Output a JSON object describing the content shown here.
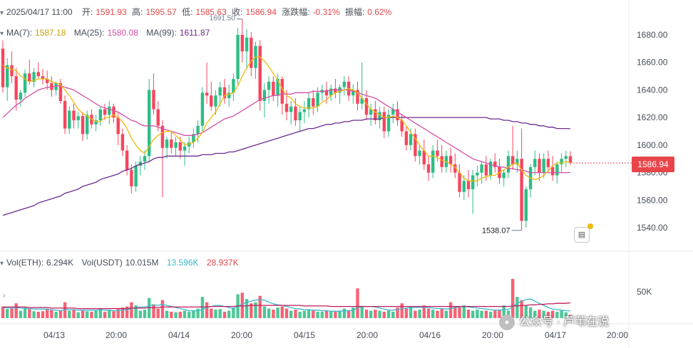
{
  "header": {
    "datetime": "2025/04/17 11:00",
    "open_label": "开:",
    "open": "1591.93",
    "high_label": "高:",
    "high": "1595.57",
    "low_label": "低:",
    "low": "1585.63",
    "close_label": "收:",
    "close": "1586.94",
    "change_label": "涨跌幅:",
    "change": "-0.31%",
    "amplitude_label": "振幅:",
    "amplitude": "0.62%"
  },
  "ma_legend": {
    "ma7_label": "MA(7):",
    "ma7": "1587.18",
    "ma25_label": "MA(25):",
    "ma25": "1580.08",
    "ma99_label": "MA(99):",
    "ma99": "1611.87"
  },
  "vol_legend": {
    "eth_label": "Vol(ETH):",
    "eth": "6.294K",
    "usdt_label": "Vol(USDT)",
    "usdt": "10.015M",
    "ma_a": "13.596K",
    "ma_b": "28.937K"
  },
  "current_price_badge": "1586.94",
  "watermark": "公众号 · 芦苇在说",
  "colors": {
    "up": "#2ebd85",
    "down": "#f6465d",
    "ma7": "#f0b90b",
    "ma25": "#d34fa6",
    "ma99": "#6c2b8c",
    "vol_ma_a": "#3bb7c9",
    "vol_ma_b": "#c2185b"
  },
  "chart_data": {
    "type": "candlestick",
    "price_axis": {
      "min": 1530,
      "max": 1700,
      "ticks": [
        "1540.00",
        "1560.00",
        "1580.00",
        "1600.00",
        "1620.00",
        "1640.00",
        "1660.00",
        "1680.00"
      ]
    },
    "volume_axis": {
      "max": 90,
      "unit": "K",
      "tick_labels": [
        "50K"
      ],
      "tick_values": [
        50
      ]
    },
    "x_tick_labels": [
      "04/13",
      "20:00",
      "04/14",
      "20:00",
      "04/15",
      "20:00",
      "04/16",
      "20:00",
      "04/17",
      "20:00"
    ],
    "annotations": [
      {
        "label": "1691.50",
        "value": 1691.5,
        "kind": "high"
      },
      {
        "label": "1538.07",
        "value": 1538.07,
        "kind": "low"
      }
    ],
    "last_price": 1586.94,
    "ohlc": [
      [
        1670,
        1676,
        1638,
        1642
      ],
      [
        1642,
        1663,
        1632,
        1658
      ],
      [
        1658,
        1668,
        1645,
        1650
      ],
      [
        1650,
        1656,
        1625,
        1633
      ],
      [
        1633,
        1640,
        1628,
        1638
      ],
      [
        1638,
        1655,
        1635,
        1652
      ],
      [
        1652,
        1662,
        1644,
        1646
      ],
      [
        1646,
        1656,
        1642,
        1653
      ],
      [
        1653,
        1660,
        1648,
        1650
      ],
      [
        1650,
        1655,
        1644,
        1648
      ],
      [
        1648,
        1654,
        1640,
        1645
      ],
      [
        1645,
        1650,
        1635,
        1640
      ],
      [
        1640,
        1646,
        1636,
        1645
      ],
      [
        1645,
        1648,
        1630,
        1632
      ],
      [
        1632,
        1636,
        1608,
        1612
      ],
      [
        1612,
        1628,
        1608,
        1625
      ],
      [
        1625,
        1630,
        1612,
        1618
      ],
      [
        1618,
        1624,
        1612,
        1621
      ],
      [
        1621,
        1624,
        1603,
        1608
      ],
      [
        1608,
        1625,
        1604,
        1622
      ],
      [
        1622,
        1626,
        1612,
        1615
      ],
      [
        1615,
        1622,
        1610,
        1618
      ],
      [
        1618,
        1628,
        1614,
        1626
      ],
      [
        1626,
        1630,
        1618,
        1622
      ],
      [
        1622,
        1632,
        1615,
        1628
      ],
      [
        1628,
        1630,
        1616,
        1620
      ],
      [
        1620,
        1624,
        1600,
        1608
      ],
      [
        1608,
        1612,
        1592,
        1596
      ],
      [
        1596,
        1600,
        1578,
        1582
      ],
      [
        1582,
        1586,
        1565,
        1570
      ],
      [
        1570,
        1588,
        1566,
        1585
      ],
      [
        1585,
        1592,
        1578,
        1588
      ],
      [
        1588,
        1596,
        1582,
        1592
      ],
      [
        1592,
        1648,
        1588,
        1640
      ],
      [
        1640,
        1652,
        1622,
        1626
      ],
      [
        1626,
        1632,
        1610,
        1614
      ],
      [
        1614,
        1618,
        1562,
        1598
      ],
      [
        1598,
        1606,
        1590,
        1604
      ],
      [
        1604,
        1610,
        1594,
        1598
      ],
      [
        1598,
        1606,
        1592,
        1602
      ],
      [
        1602,
        1606,
        1590,
        1596
      ],
      [
        1596,
        1602,
        1585,
        1599
      ],
      [
        1599,
        1606,
        1594,
        1602
      ],
      [
        1602,
        1612,
        1598,
        1608
      ],
      [
        1608,
        1618,
        1602,
        1614
      ],
      [
        1614,
        1642,
        1610,
        1638
      ],
      [
        1638,
        1660,
        1630,
        1636
      ],
      [
        1636,
        1646,
        1625,
        1628
      ],
      [
        1628,
        1640,
        1622,
        1636
      ],
      [
        1636,
        1646,
        1628,
        1642
      ],
      [
        1642,
        1648,
        1630,
        1634
      ],
      [
        1634,
        1644,
        1628,
        1638
      ],
      [
        1638,
        1652,
        1632,
        1648
      ],
      [
        1648,
        1685,
        1644,
        1680
      ],
      [
        1680,
        1691.5,
        1660,
        1668
      ],
      [
        1668,
        1684,
        1655,
        1678
      ],
      [
        1678,
        1682,
        1650,
        1656
      ],
      [
        1656,
        1675,
        1648,
        1672
      ],
      [
        1672,
        1676,
        1625,
        1632
      ],
      [
        1632,
        1645,
        1620,
        1640
      ],
      [
        1640,
        1650,
        1630,
        1646
      ],
      [
        1646,
        1650,
        1632,
        1636
      ],
      [
        1636,
        1652,
        1628,
        1648
      ],
      [
        1648,
        1650,
        1622,
        1630
      ],
      [
        1630,
        1640,
        1618,
        1624
      ],
      [
        1624,
        1632,
        1615,
        1628
      ],
      [
        1628,
        1634,
        1614,
        1618
      ],
      [
        1618,
        1628,
        1610,
        1624
      ],
      [
        1624,
        1632,
        1616,
        1626
      ],
      [
        1626,
        1638,
        1620,
        1634
      ],
      [
        1634,
        1640,
        1622,
        1628
      ],
      [
        1628,
        1642,
        1624,
        1638
      ],
      [
        1638,
        1644,
        1632,
        1640
      ],
      [
        1640,
        1646,
        1630,
        1636
      ],
      [
        1636,
        1644,
        1632,
        1641
      ],
      [
        1641,
        1648,
        1634,
        1638
      ],
      [
        1638,
        1644,
        1630,
        1642
      ],
      [
        1642,
        1650,
        1636,
        1646
      ],
      [
        1646,
        1650,
        1632,
        1636
      ],
      [
        1636,
        1644,
        1630,
        1640
      ],
      [
        1640,
        1646,
        1625,
        1630
      ],
      [
        1630,
        1660,
        1626,
        1634
      ],
      [
        1634,
        1640,
        1618,
        1622
      ],
      [
        1622,
        1630,
        1614,
        1626
      ],
      [
        1626,
        1632,
        1615,
        1618
      ],
      [
        1618,
        1628,
        1612,
        1624
      ],
      [
        1624,
        1628,
        1605,
        1610
      ],
      [
        1610,
        1626,
        1606,
        1622
      ],
      [
        1622,
        1630,
        1616,
        1626
      ],
      [
        1626,
        1632,
        1614,
        1618
      ],
      [
        1618,
        1622,
        1606,
        1610
      ],
      [
        1610,
        1614,
        1596,
        1600
      ],
      [
        1600,
        1612,
        1596,
        1608
      ],
      [
        1608,
        1612,
        1588,
        1592
      ],
      [
        1592,
        1600,
        1586,
        1596
      ],
      [
        1596,
        1604,
        1582,
        1586
      ],
      [
        1586,
        1592,
        1574,
        1580
      ],
      [
        1580,
        1600,
        1576,
        1596
      ],
      [
        1596,
        1604,
        1588,
        1592
      ],
      [
        1592,
        1600,
        1580,
        1584
      ],
      [
        1584,
        1596,
        1580,
        1592
      ],
      [
        1592,
        1598,
        1580,
        1586
      ],
      [
        1586,
        1594,
        1576,
        1580
      ],
      [
        1580,
        1586,
        1562,
        1566
      ],
      [
        1566,
        1578,
        1560,
        1574
      ],
      [
        1574,
        1582,
        1562,
        1568
      ],
      [
        1568,
        1582,
        1550,
        1578
      ],
      [
        1578,
        1585,
        1570,
        1580
      ],
      [
        1580,
        1588,
        1572,
        1586
      ],
      [
        1586,
        1592,
        1574,
        1578
      ],
      [
        1578,
        1590,
        1575,
        1588
      ],
      [
        1588,
        1594,
        1580,
        1584
      ],
      [
        1584,
        1590,
        1572,
        1576
      ],
      [
        1576,
        1582,
        1570,
        1580
      ],
      [
        1580,
        1596,
        1576,
        1592
      ],
      [
        1592,
        1614,
        1582,
        1586
      ],
      [
        1586,
        1596,
        1580,
        1590
      ],
      [
        1590,
        1612,
        1538.07,
        1545
      ],
      [
        1545,
        1570,
        1540,
        1568
      ],
      [
        1568,
        1586,
        1562,
        1584
      ],
      [
        1584,
        1596,
        1578,
        1590
      ],
      [
        1590,
        1594,
        1574,
        1580
      ],
      [
        1580,
        1594,
        1576,
        1590
      ],
      [
        1590,
        1596,
        1580,
        1584
      ],
      [
        1584,
        1592,
        1574,
        1578
      ],
      [
        1578,
        1588,
        1572,
        1586
      ],
      [
        1586,
        1594,
        1580,
        1590
      ],
      [
        1590,
        1596,
        1584,
        1592
      ],
      [
        1591.93,
        1595.57,
        1585.63,
        1586.94
      ]
    ],
    "ma7": [
      1658,
      1656,
      1655,
      1654,
      1650,
      1648,
      1646,
      1647,
      1648,
      1648,
      1648,
      1646,
      1645,
      1644,
      1640,
      1636,
      1631,
      1626,
      1623,
      1621,
      1619,
      1617,
      1617,
      1620,
      1620,
      1622,
      1620,
      1617,
      1612,
      1605,
      1600,
      1596,
      1594,
      1599,
      1604,
      1607,
      1609,
      1610,
      1610,
      1607,
      1604,
      1600,
      1601,
      1602,
      1605,
      1609,
      1616,
      1620,
      1624,
      1630,
      1636,
      1637,
      1638,
      1643,
      1650,
      1656,
      1661,
      1664,
      1664,
      1661,
      1657,
      1652,
      1647,
      1641,
      1636,
      1634,
      1630,
      1628,
      1627,
      1627,
      1627,
      1628,
      1631,
      1633,
      1636,
      1638,
      1639,
      1640,
      1641,
      1640,
      1638,
      1634,
      1630,
      1626,
      1624,
      1622,
      1620,
      1620,
      1621,
      1620,
      1618,
      1614,
      1609,
      1605,
      1600,
      1596,
      1592,
      1592,
      1591,
      1589,
      1588,
      1586,
      1584,
      1580,
      1576,
      1574,
      1574,
      1574,
      1576,
      1577,
      1578,
      1578,
      1580,
      1582,
      1584,
      1586,
      1587,
      1582,
      1578,
      1576,
      1575,
      1576,
      1578,
      1581,
      1585,
      1587,
      1587,
      1588,
      1587.18
    ],
    "ma25": [
      1620,
      1623,
      1626,
      1629,
      1631,
      1634,
      1636,
      1638,
      1640,
      1641,
      1642,
      1642,
      1643,
      1643,
      1642,
      1641,
      1640,
      1638,
      1636,
      1634,
      1632,
      1630,
      1628,
      1627,
      1626,
      1625,
      1624,
      1622,
      1620,
      1618,
      1617,
      1615,
      1614,
      1614,
      1614,
      1613,
      1612,
      1611,
      1610,
      1609,
      1608,
      1607,
      1607,
      1607,
      1608,
      1609,
      1611,
      1613,
      1615,
      1617,
      1619,
      1620,
      1621,
      1623,
      1625,
      1627,
      1629,
      1631,
      1633,
      1634,
      1635,
      1636,
      1636,
      1637,
      1637,
      1637,
      1638,
      1638,
      1638,
      1638,
      1639,
      1639,
      1639,
      1639,
      1640,
      1640,
      1640,
      1640,
      1640,
      1639,
      1638,
      1637,
      1636,
      1635,
      1634,
      1632,
      1630,
      1628,
      1626,
      1624,
      1622,
      1620,
      1618,
      1616,
      1614,
      1612,
      1610,
      1608,
      1606,
      1604,
      1602,
      1600,
      1598,
      1596,
      1594,
      1592,
      1590,
      1589,
      1588,
      1587,
      1586,
      1585,
      1584,
      1584,
      1583,
      1583,
      1582,
      1582,
      1581,
      1580,
      1580,
      1580,
      1580,
      1580,
      1580,
      1580,
      1580,
      1580,
      1580.08
    ],
    "ma99": [
      1549,
      1550,
      1551,
      1552,
      1553,
      1554,
      1555,
      1556,
      1558,
      1559,
      1560,
      1561,
      1562,
      1563,
      1565,
      1566,
      1567,
      1568,
      1570,
      1571,
      1572,
      1573,
      1575,
      1576,
      1577,
      1578,
      1579,
      1581,
      1582,
      1583,
      1585,
      1586,
      1587,
      1588,
      1590,
      1591,
      1591,
      1592,
      1592,
      1592,
      1592,
      1592,
      1592,
      1592,
      1592,
      1593,
      1593,
      1593,
      1594,
      1594,
      1594,
      1595,
      1595,
      1596,
      1597,
      1598,
      1599,
      1600,
      1601,
      1602,
      1603,
      1604,
      1605,
      1606,
      1607,
      1608,
      1609,
      1610,
      1611,
      1612,
      1612,
      1613,
      1614,
      1615,
      1615,
      1616,
      1616,
      1617,
      1617,
      1618,
      1618,
      1618,
      1619,
      1619,
      1619,
      1619,
      1620,
      1620,
      1620,
      1620,
      1620,
      1620,
      1620,
      1620,
      1620,
      1620,
      1620,
      1620,
      1620,
      1620,
      1620,
      1620,
      1620,
      1620,
      1620,
      1620,
      1620,
      1620,
      1620,
      1620,
      1619,
      1619,
      1619,
      1618,
      1618,
      1617,
      1617,
      1616,
      1616,
      1615,
      1615,
      1614,
      1614,
      1613,
      1613,
      1612,
      1612,
      1612,
      1611.87
    ],
    "volume": [
      22,
      17,
      18,
      28,
      14,
      20,
      17,
      13,
      12,
      13,
      16,
      15,
      12,
      14,
      30,
      14,
      16,
      11,
      14,
      13,
      12,
      14,
      18,
      12,
      14,
      13,
      17,
      20,
      22,
      30,
      24,
      14,
      16,
      38,
      26,
      18,
      34,
      14,
      12,
      11,
      12,
      14,
      12,
      14,
      18,
      40,
      30,
      18,
      16,
      17,
      12,
      14,
      20,
      45,
      48,
      36,
      28,
      30,
      42,
      22,
      18,
      16,
      20,
      22,
      18,
      14,
      16,
      12,
      14,
      16,
      14,
      12,
      12,
      14,
      12,
      12,
      14,
      18,
      14,
      20,
      56,
      22,
      16,
      14,
      16,
      14,
      12,
      14,
      12,
      20,
      28,
      18,
      22,
      14,
      16,
      24,
      18,
      16,
      14,
      18,
      14,
      30,
      22,
      20,
      24,
      16,
      14,
      16,
      14,
      14,
      12,
      14,
      16,
      24,
      14,
      74,
      40,
      34,
      24,
      20,
      14,
      16,
      14,
      12,
      14,
      12,
      14,
      11,
      6.294
    ],
    "vol_ma_a": [
      20,
      19,
      19,
      20,
      19,
      18,
      18,
      17,
      17,
      17,
      17,
      16,
      15,
      14,
      16,
      16,
      16,
      15,
      15,
      15,
      15,
      15,
      16,
      15,
      15,
      14,
      14,
      15,
      16,
      18,
      20,
      21,
      21,
      23,
      25,
      24,
      26,
      24,
      22,
      20,
      18,
      16,
      14,
      14,
      14,
      16,
      20,
      22,
      24,
      24,
      22,
      20,
      18,
      22,
      26,
      30,
      32,
      34,
      35,
      34,
      30,
      27,
      25,
      24,
      22,
      20,
      18,
      17,
      16,
      16,
      15,
      15,
      14,
      14,
      13,
      13,
      13,
      14,
      14,
      15,
      20,
      22,
      22,
      22,
      21,
      19,
      17,
      15,
      15,
      16,
      18,
      19,
      20,
      20,
      20,
      20,
      20,
      19,
      18,
      18,
      17,
      18,
      20,
      21,
      22,
      21,
      20,
      19,
      18,
      17,
      16,
      15,
      15,
      16,
      16,
      22,
      28,
      32,
      35,
      36,
      32,
      28,
      24,
      20,
      17,
      16,
      15,
      14,
      13.6
    ],
    "vol_ma_b": [
      21,
      21,
      21,
      21,
      21,
      21,
      20,
      20,
      20,
      20,
      20,
      19,
      19,
      19,
      19,
      19,
      19,
      18,
      18,
      18,
      18,
      18,
      18,
      18,
      18,
      18,
      18,
      18,
      18,
      19,
      19,
      19,
      19,
      20,
      20,
      20,
      21,
      21,
      21,
      21,
      21,
      21,
      21,
      21,
      21,
      21,
      21,
      22,
      22,
      22,
      22,
      22,
      22,
      23,
      23,
      23,
      24,
      24,
      24,
      24,
      24,
      24,
      24,
      24,
      24,
      24,
      24,
      24,
      23,
      23,
      23,
      23,
      23,
      23,
      22,
      22,
      22,
      22,
      22,
      22,
      22,
      22,
      22,
      22,
      22,
      22,
      22,
      22,
      22,
      22,
      22,
      22,
      22,
      22,
      22,
      22,
      22,
      22,
      22,
      22,
      22,
      22,
      22,
      22,
      22,
      22,
      22,
      22,
      22,
      22,
      22,
      22,
      22,
      22,
      22,
      23,
      23,
      24,
      24,
      25,
      25,
      26,
      26,
      27,
      27,
      28,
      28,
      28,
      28.9
    ]
  }
}
